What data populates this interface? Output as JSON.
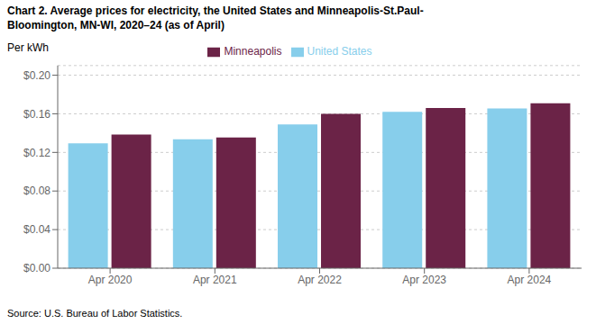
{
  "chart_data": {
    "type": "bar",
    "title": "Chart 2. Average prices for electricity, the United States and Minneapolis-St.Paul-\nBloomington, MN-WI, 2020–24 (as of April)",
    "ylabel": "Per kWh",
    "source": "Source: U.S. Bureau of Labor Statistics.",
    "categories": [
      "Apr 2020",
      "Apr 2021",
      "Apr 2022",
      "Apr 2023",
      "Apr 2024"
    ],
    "series": [
      {
        "name": "United States",
        "color": "#87CEEB",
        "values": [
          0.1295,
          0.1335,
          0.149,
          0.162,
          0.1655
        ]
      },
      {
        "name": "Minneapolis",
        "color": "#6B2347",
        "values": [
          0.1385,
          0.1355,
          0.16,
          0.166,
          0.171
        ]
      }
    ],
    "ylim": [
      0,
      0.21
    ],
    "yticks": [
      {
        "value": 0.0,
        "label": "$0.00"
      },
      {
        "value": 0.04,
        "label": "$0.04"
      },
      {
        "value": 0.08,
        "label": "$0.08"
      },
      {
        "value": 0.12,
        "label": "$0.12"
      },
      {
        "value": 0.16,
        "label": "$0.16"
      },
      {
        "value": 0.2,
        "label": "$0.20"
      }
    ],
    "grid": true,
    "legend": "top"
  }
}
